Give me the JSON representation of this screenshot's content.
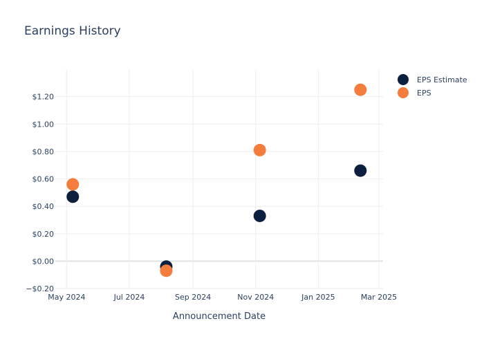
{
  "chart_data": {
    "type": "scatter",
    "title": "Earnings History",
    "xlabel": "Announcement Date",
    "ylabel": "",
    "x_ticks": [
      {
        "date": "2024-05-01",
        "label": "May 2024"
      },
      {
        "date": "2024-07-01",
        "label": "Jul 2024"
      },
      {
        "date": "2024-09-01",
        "label": "Sep 2024"
      },
      {
        "date": "2024-11-01",
        "label": "Nov 2024"
      },
      {
        "date": "2025-01-01",
        "label": "Jan 2025"
      },
      {
        "date": "2025-03-01",
        "label": "Mar 2025"
      }
    ],
    "x_range": [
      "2024-04-20",
      "2025-03-05"
    ],
    "y_ticks": [
      {
        "value": -0.2,
        "label": "−$0.20"
      },
      {
        "value": 0,
        "label": "$0.00"
      },
      {
        "value": 0.2,
        "label": "$0.20"
      },
      {
        "value": 0.4,
        "label": "$0.40"
      },
      {
        "value": 0.6,
        "label": "$0.60"
      },
      {
        "value": 0.8,
        "label": "$0.80"
      },
      {
        "value": 1.0,
        "label": "$1.00"
      },
      {
        "value": 1.2,
        "label": "$1.20"
      }
    ],
    "ylim": [
      -0.2,
      1.4
    ],
    "grid": true,
    "legend_position": "top-right",
    "series": [
      {
        "name": "EPS Estimate",
        "color": "#0d1f3f",
        "points": [
          {
            "x": "2024-05-07",
            "y": 0.47
          },
          {
            "x": "2024-08-06",
            "y": -0.04
          },
          {
            "x": "2024-11-05",
            "y": 0.33
          },
          {
            "x": "2025-02-11",
            "y": 0.66
          }
        ]
      },
      {
        "name": "EPS",
        "color": "#f47c3c",
        "points": [
          {
            "x": "2024-05-07",
            "y": 0.56
          },
          {
            "x": "2024-08-06",
            "y": -0.07
          },
          {
            "x": "2024-11-05",
            "y": 0.81
          },
          {
            "x": "2025-02-11",
            "y": 1.25
          }
        ]
      }
    ]
  }
}
